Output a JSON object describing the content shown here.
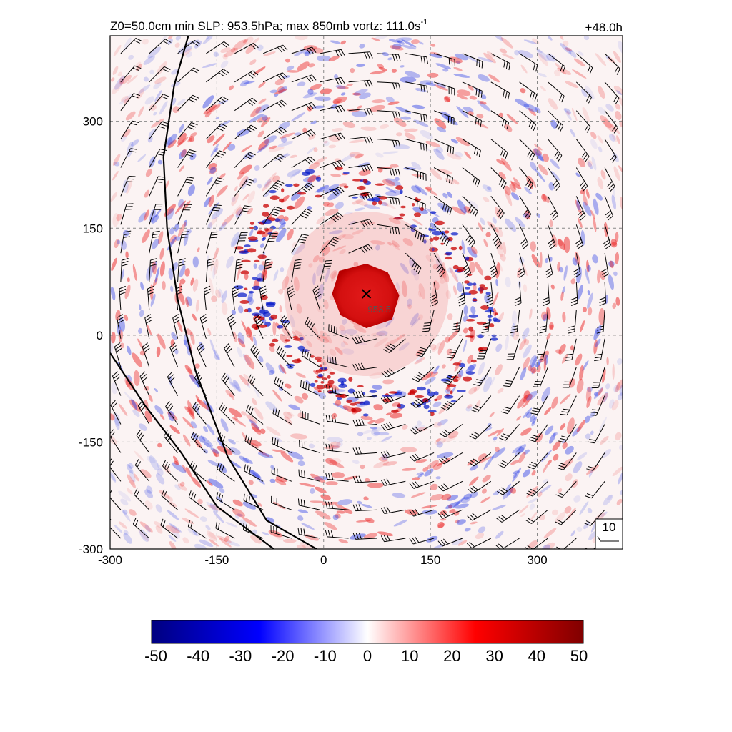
{
  "chart_data": {
    "type": "heatmap",
    "title_main": "Z0=50.0cm  min SLP: 953.5hPa; max 850mb vortz: 111.0s",
    "title_sup": "-1",
    "time_label": "+48.0h",
    "x_ticks": [
      -300,
      -150,
      0,
      150,
      300
    ],
    "y_ticks": [
      -300,
      -150,
      0,
      150,
      300
    ],
    "xlim": [
      -300,
      420
    ],
    "ylim": [
      -300,
      420
    ],
    "grid": true,
    "center": {
      "x": 60,
      "y": 58,
      "label": "953.5",
      "marker": "cross"
    },
    "wind_barbs": true,
    "barb_reference_label": "10",
    "colorbar": {
      "ticks": [
        -50,
        -40,
        -30,
        -20,
        -10,
        0,
        10,
        20,
        30,
        40,
        50
      ],
      "range": [
        -50,
        50
      ],
      "colors": [
        "#000080",
        "#0000ff",
        "#ffffff",
        "#ff0000",
        "#800000"
      ]
    },
    "coastlines": [
      {
        "points": [
          [
            -190,
            420
          ],
          [
            -210,
            350
          ],
          [
            -225,
            250
          ],
          [
            -220,
            150
          ],
          [
            -205,
            50
          ],
          [
            -180,
            -50
          ],
          [
            -135,
            -170
          ],
          [
            -80,
            -260
          ],
          [
            -10,
            -300
          ]
        ]
      },
      {
        "points": [
          [
            -300,
            -25
          ],
          [
            -250,
            -100
          ],
          [
            -200,
            -165
          ],
          [
            -150,
            -240
          ],
          [
            -70,
            -300
          ]
        ]
      }
    ]
  }
}
